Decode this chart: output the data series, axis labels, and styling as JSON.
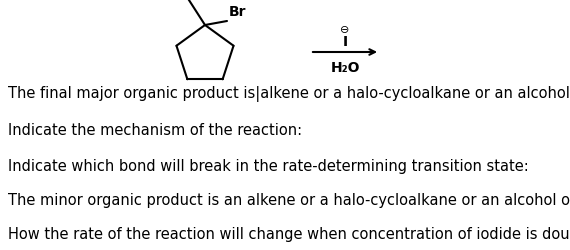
{
  "background_color": "#ffffff",
  "text_color": "#000000",
  "questions": [
    "The final major organic product is|alkene or a halo-cycloalkane or an alcohol or ether:",
    "Indicate the mechanism of the reaction:",
    "Indicate which bond will break in the rate-determining transition state:",
    "The minor organic product is an alkene or a halo-cycloalkane or an alcohol or ether:",
    "How the rate of the reaction will change when concentration of iodide is doubled:"
  ],
  "fontsize": 10.5,
  "br_label": "Br",
  "reagent_below": "H₂O"
}
